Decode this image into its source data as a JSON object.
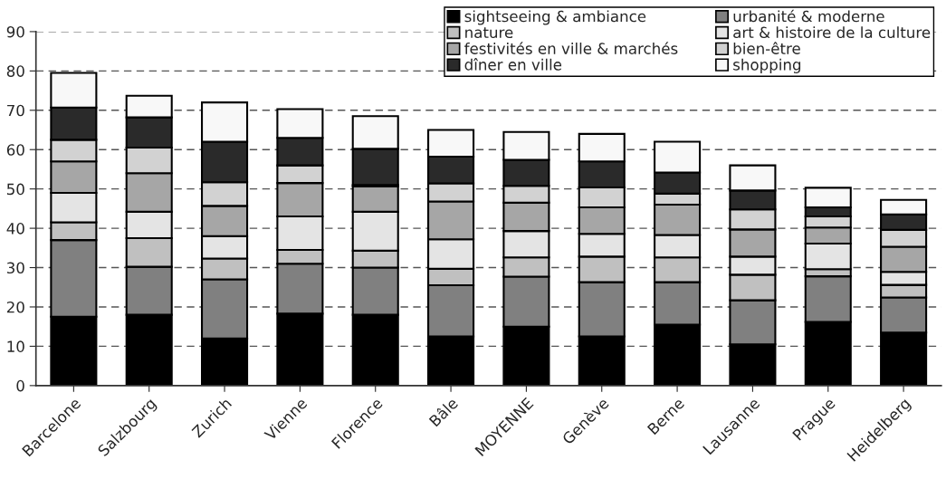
{
  "chart_data": {
    "type": "bar",
    "stacked": true,
    "categories": [
      "Barcelone",
      "Salzbourg",
      "Zurich",
      "Vienne",
      "Florence",
      "Bâle",
      "MOYENNE",
      "Genève",
      "Berne",
      "Lausanne",
      "Prague",
      "Heidelberg"
    ],
    "series": [
      {
        "name": "sightseeing & ambiance",
        "color": "#000000",
        "values": [
          17.5,
          18,
          12,
          18.3,
          18,
          12.5,
          15,
          12.5,
          15.5,
          10.5,
          16.2,
          13.5
        ]
      },
      {
        "name": "urbanité & moderne",
        "color": "#808080",
        "values": [
          19.5,
          12.2,
          15,
          12.7,
          12,
          13,
          12.7,
          13.8,
          10.8,
          11.2,
          11.6,
          8.9
        ]
      },
      {
        "name": "nature",
        "color": "#c0c0c0",
        "values": [
          4.5,
          7.3,
          5.3,
          3.5,
          4.3,
          4.2,
          4.9,
          6.5,
          6.3,
          6.5,
          1.8,
          3.2
        ]
      },
      {
        "name": "art & histoire de la culture",
        "color": "#e4e4e4",
        "values": [
          7.5,
          6.7,
          5.7,
          8.5,
          9.9,
          7.5,
          6.7,
          5.8,
          5.7,
          4.6,
          6.5,
          3.3
        ]
      },
      {
        "name": "festivités en ville & marchés",
        "color": "#a6a6a6",
        "values": [
          8,
          9.8,
          7.7,
          8.5,
          6.5,
          9.6,
          7.2,
          6.7,
          7.7,
          6.9,
          4.1,
          6.4
        ]
      },
      {
        "name": "bien-être",
        "color": "#d2d2d2",
        "values": [
          5.5,
          6.5,
          6,
          4.5,
          0.3,
          4.6,
          4.3,
          5.1,
          2.8,
          5.1,
          2.8,
          4.3
        ]
      },
      {
        "name": "dîner en ville",
        "color": "#2a2a2a",
        "values": [
          8.2,
          7.7,
          10.3,
          7,
          9.2,
          6.8,
          6.6,
          6.6,
          5.4,
          4.8,
          2.3,
          3.9
        ]
      },
      {
        "name": "shopping",
        "color": "#f8f8f8",
        "values": [
          8.8,
          5.5,
          10,
          7.3,
          8.3,
          6.8,
          7.1,
          7,
          7.8,
          6.4,
          5,
          3.7
        ]
      }
    ],
    "ylim": [
      0,
      90
    ],
    "yticks": [
      0,
      10,
      20,
      30,
      40,
      50,
      60,
      70,
      80,
      90
    ],
    "grid": "y",
    "legend": "top right"
  }
}
